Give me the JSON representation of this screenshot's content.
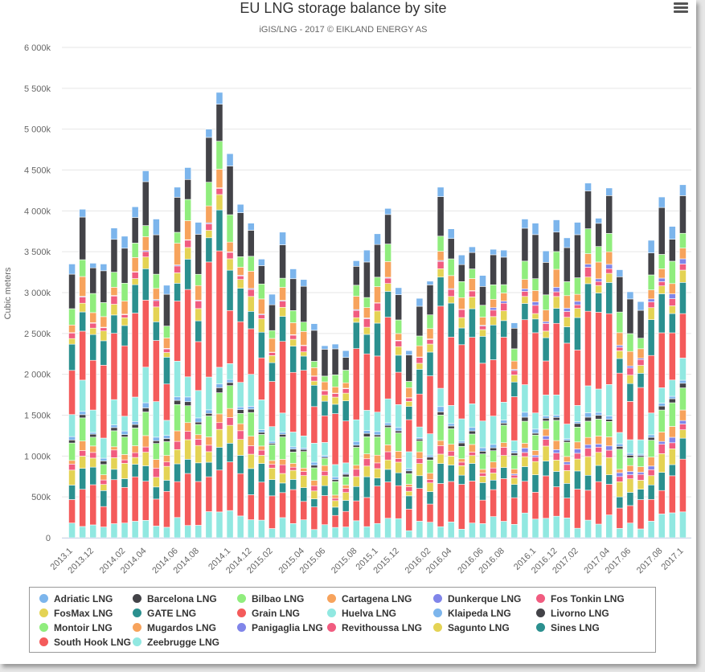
{
  "chart_data": {
    "type": "bar",
    "stacked": true,
    "title": "EU LNG storage balance by site",
    "subtitle": "iGIS/LNG - 2017 © EIKLAND ENERGY AS",
    "ylabel": "Cubic meters",
    "xlabel": "",
    "ylim": [
      0,
      6000000
    ],
    "yticks": [
      0,
      500000,
      1000000,
      1500000,
      2000000,
      2500000,
      3000000,
      3500000,
      4000000,
      4500000,
      5000000,
      5500000,
      6000000
    ],
    "ytick_labels": [
      "0",
      "500k",
      "1 000k",
      "1 500k",
      "2 000k",
      "2 500k",
      "3 000k",
      "3 500k",
      "4 000k",
      "4 500k",
      "5 000k",
      "5 500k",
      "6 000k"
    ],
    "x_labels_shown": [
      "2013.1",
      "2013.12",
      "2014.02",
      "2014.04",
      "2014.06",
      "2014.08",
      "2014.1",
      "2014.12",
      "2015.02",
      "2015.04",
      "2015.06",
      "2015.08",
      "2015.1",
      "2015.12",
      "2016.02",
      "2016.04",
      "2016.06",
      "2016.08",
      "2016.1",
      "2016.12",
      "2017.02",
      "2017.04",
      "2017.06",
      "2017.08",
      "2017.1"
    ],
    "bar_count": 59,
    "totals": [
      3350000,
      4020000,
      3360000,
      3350000,
      3790000,
      3690000,
      4050000,
      4490000,
      3900000,
      3090000,
      4290000,
      4530000,
      3860000,
      5000000,
      5450000,
      4700000,
      4080000,
      3850000,
      3410000,
      2980000,
      3740000,
      3290000,
      3160000,
      2620000,
      2350000,
      2370000,
      2290000,
      3390000,
      3520000,
      3720000,
      4030000,
      3060000,
      2290000,
      2930000,
      3140000,
      4290000,
      3780000,
      3460000,
      3560000,
      3210000,
      3530000,
      3520000,
      2630000,
      3900000,
      3850000,
      3510000,
      3890000,
      3670000,
      3860000,
      4340000,
      3910000,
      4280000,
      3280000,
      3010000,
      2890000,
      3640000,
      4170000,
      3810000,
      4320000
    ],
    "legend_position": "bottom",
    "grid": true,
    "series": [
      {
        "name": "Adriatic LNG",
        "color": "#7cb5ec"
      },
      {
        "name": "Barcelona LNG",
        "color": "#434348"
      },
      {
        "name": "Bilbao LNG",
        "color": "#90ed7d"
      },
      {
        "name": "Cartagena LNG",
        "color": "#f7a35c"
      },
      {
        "name": "Dunkerque LNG",
        "color": "#8085e9"
      },
      {
        "name": "Fos Tonkin LNG",
        "color": "#f15c80"
      },
      {
        "name": "FosMax LNG",
        "color": "#e4d354"
      },
      {
        "name": "GATE LNG",
        "color": "#2b908f"
      },
      {
        "name": "Grain LNG",
        "color": "#f45b5b"
      },
      {
        "name": "Huelva LNG",
        "color": "#91e8e1"
      },
      {
        "name": "Klaipeda LNG",
        "color": "#7cb5ec"
      },
      {
        "name": "Livorno LNG",
        "color": "#434348"
      },
      {
        "name": "Montoir LNG",
        "color": "#90ed7d"
      },
      {
        "name": "Mugardos LNG",
        "color": "#f7a35c"
      },
      {
        "name": "Panigaglia LNG",
        "color": "#8085e9"
      },
      {
        "name": "Revithoussa LNG",
        "color": "#f15c80"
      },
      {
        "name": "Sagunto LNG",
        "color": "#e4d354"
      },
      {
        "name": "Sines LNG",
        "color": "#2b908f"
      },
      {
        "name": "South Hook LNG",
        "color": "#f45b5b"
      },
      {
        "name": "Zeebrugge LNG",
        "color": "#91e8e1"
      }
    ],
    "bottom_to_top_order": [
      "Zeebrugge LNG",
      "South Hook LNG",
      "Sines LNG",
      "Sagunto LNG",
      "Revithoussa LNG",
      "Panigaglia LNG",
      "Mugardos LNG",
      "Montoir LNG",
      "Livorno LNG",
      "Klaipeda LNG",
      "Huelva LNG",
      "Grain LNG",
      "GATE LNG",
      "FosMax LNG",
      "Fos Tonkin LNG",
      "Dunkerque LNG",
      "Cartagena LNG",
      "Bilbao LNG",
      "Barcelona LNG",
      "Adriatic LNG"
    ],
    "stack_shares": {
      "Zeebrugge LNG": 0.05,
      "South Hook LNG": 0.11,
      "Sines LNG": 0.05,
      "Sagunto LNG": 0.04,
      "Revithoussa LNG": 0.02,
      "Panigaglia LNG": 0.01,
      "Mugardos LNG": 0.02,
      "Montoir LNG": 0.05,
      "Livorno LNG": 0.01,
      "Klaipeda LNG": 0.01,
      "Huelva LNG": 0.07,
      "Grain LNG": 0.2,
      "GATE LNG": 0.08,
      "FosMax LNG": 0.03,
      "Fos Tonkin LNG": 0.02,
      "Dunkerque LNG": 0.01,
      "Cartagena LNG": 0.04,
      "Bilbao LNG": 0.05,
      "Barcelona LNG": 0.1,
      "Adriatic LNG": 0.03
    }
  },
  "menu": {
    "icon": "hamburger-menu-icon"
  }
}
